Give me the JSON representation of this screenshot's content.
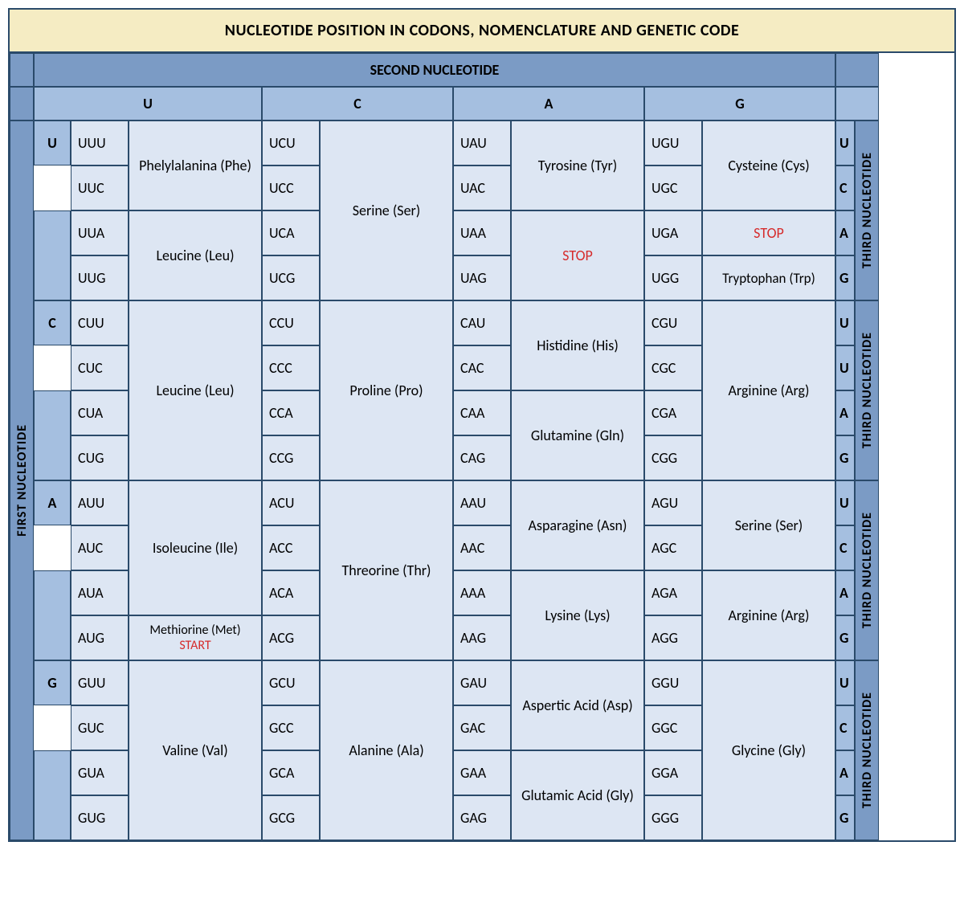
{
  "title": "NUCLEOTIDE POSITION IN CODONS, NOMENCLATURE AND GENETIC CODE",
  "labels": {
    "second": "SECOND NUCLEOTIDE",
    "first": "FIRST NUCLEOTIDE",
    "third": "THIRD NUCLEOTIDE",
    "U": "U",
    "C": "C",
    "A": "A",
    "G": "G"
  },
  "colors": {
    "title_bg": "#f5ecc3",
    "border": "#2a4a6a",
    "hdr_dark": "#7b9bc5",
    "hdr_mid": "#a5bfe0",
    "body": "#dde6f3",
    "stop": "#d62c2c"
  },
  "amino": {
    "phe": "Phelylalanina (Phe)",
    "leu": "Leucine (Leu)",
    "ser": "Serine (Ser)",
    "tyr": "Tyrosine (Tyr)",
    "stop": "STOP",
    "cys": "Cysteine (Cys)",
    "trp": "Tryptophan (Trp)",
    "pro": "Proline (Pro)",
    "his": "Histidine (His)",
    "gln": "Glutamine (Gln)",
    "arg": "Arginine (Arg)",
    "ile": "Isoleucine (Ile)",
    "met_pre": "Methiorine (Met) ",
    "met_start": "START",
    "thr": "Threorine (Thr)",
    "asn": "Asparagine (Asn)",
    "lys": "Lysine (Lys)",
    "val": "Valine (Val)",
    "ala": "Alanine (Ala)",
    "asp": "Aspertic Acid (Asp)",
    "glu": "Glutamic Acid (Gly)",
    "gly": "Glycine (Gly)"
  },
  "codons": {
    "UUU": "UUU",
    "UUC": "UUC",
    "UUA": "UUA",
    "UUG": "UUG",
    "UCU": "UCU",
    "UCC": "UCC",
    "UCA": "UCA",
    "UCG": "UCG",
    "UAU": "UAU",
    "UAC": "UAC",
    "UAA": "UAA",
    "UAG": "UAG",
    "UGU": "UGU",
    "UGC": "UGC",
    "UGA": "UGA",
    "UGG": "UGG",
    "CUU": "CUU",
    "CUC": "CUC",
    "CUA": "CUA",
    "CUG": "CUG",
    "CCU": "CCU",
    "CCC": "CCC",
    "CCA": "CCA",
    "CCG": "CCG",
    "CAU": "CAU",
    "CAC": "CAC",
    "CAA": "CAA",
    "CAG": "CAG",
    "CGU": "CGU",
    "CGC": "CGC",
    "CGA": "CGA",
    "CGG": "CGG",
    "AUU": "AUU",
    "AUC": "AUC",
    "AUA": "AUA",
    "AUG": "AUG",
    "ACU": "ACU",
    "ACC": "ACC",
    "ACA": "ACA",
    "ACG": "ACG",
    "AAU": "AAU",
    "AAC": "AAC",
    "AAA": "AAA",
    "AAG": "AAG",
    "AGU": "AGU",
    "AGC": "AGC",
    "AGA": "AGA",
    "AGG": "AGG",
    "GUU": "GUU",
    "GUC": "GUC",
    "GUA": "GUA",
    "GUG": "GUG",
    "GCU": "GCU",
    "GCC": "GCC",
    "GCA": "GCA",
    "GCG": "GCG",
    "GAU": "GAU",
    "GAC": "GAC",
    "GAA": "GAA",
    "GAG": "GAG",
    "GGU": "GGU",
    "GGC": "GGC",
    "GGA": "GGA",
    "GGG": "GGG"
  },
  "third_seq": {
    "U": "U",
    "C": "C",
    "A": "A",
    "G": "G",
    "U2": "U",
    "U3": "U"
  }
}
